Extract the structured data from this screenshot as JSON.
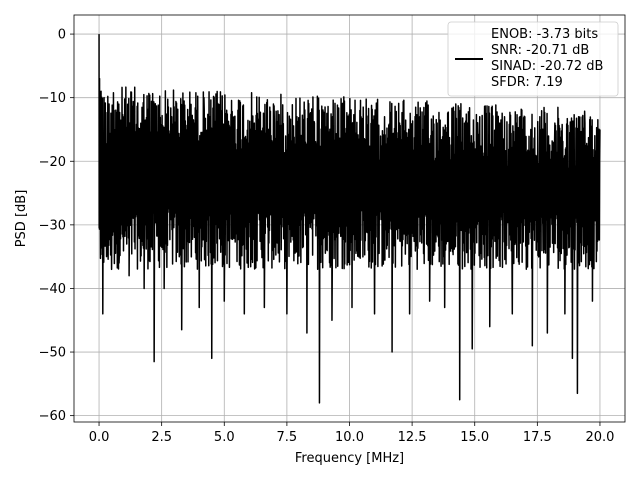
{
  "chart_data": {
    "type": "line",
    "xlabel": "Frequency [MHz]",
    "ylabel": "PSD [dB]",
    "xlim": [
      -1.0,
      21.0
    ],
    "ylim": [
      -61.0,
      3.0
    ],
    "xticks": [
      0.0,
      2.5,
      5.0,
      7.5,
      10.0,
      12.5,
      15.0,
      17.5,
      20.0
    ],
    "xtick_labels": [
      "0.0",
      "2.5",
      "5.0",
      "7.5",
      "10.0",
      "12.5",
      "15.0",
      "17.5",
      "20.0"
    ],
    "yticks": [
      0,
      -10,
      -20,
      -30,
      -40,
      -50,
      -60
    ],
    "ytick_labels": [
      "0",
      "−10",
      "−20",
      "−30",
      "−40",
      "−50",
      "−60"
    ],
    "grid": true,
    "legend_position": "top-right",
    "legend_lines": [
      "ENOB: -3.73 bits",
      "SNR: -20.71 dB",
      "SINAD: -20.72 dB",
      "SFDR: 7.19"
    ],
    "series": [
      {
        "color": "#000000",
        "noise_floor_range_db": [
          -37,
          -8
        ],
        "points": [
          [
            0.0,
            0.0
          ],
          [
            0.02,
            -7
          ],
          [
            0.05,
            -22
          ],
          [
            0.08,
            -9
          ],
          [
            0.1,
            -30
          ],
          [
            0.12,
            -12
          ],
          [
            0.15,
            -44
          ],
          [
            0.2,
            -10
          ],
          [
            0.3,
            -35
          ],
          [
            0.4,
            -11
          ],
          [
            0.5,
            -37
          ],
          [
            0.6,
            -12
          ],
          [
            0.8,
            -36
          ],
          [
            1.0,
            -13
          ],
          [
            1.2,
            -38
          ],
          [
            1.4,
            -12
          ],
          [
            1.8,
            -40
          ],
          [
            2.0,
            -14
          ],
          [
            2.2,
            -51.5
          ],
          [
            2.4,
            -13
          ],
          [
            2.6,
            -40
          ],
          [
            2.9,
            -13
          ],
          [
            3.3,
            -46.5
          ],
          [
            3.6,
            -13
          ],
          [
            4.0,
            -43
          ],
          [
            4.2,
            -12
          ],
          [
            4.5,
            -51
          ],
          [
            4.8,
            -13
          ],
          [
            5.0,
            -42
          ],
          [
            5.4,
            -13
          ],
          [
            5.8,
            -44
          ],
          [
            6.2,
            -14
          ],
          [
            6.6,
            -43
          ],
          [
            7.0,
            -14
          ],
          [
            7.5,
            -44
          ],
          [
            7.9,
            -13
          ],
          [
            8.3,
            -47
          ],
          [
            8.6,
            -14
          ],
          [
            8.8,
            -58
          ],
          [
            9.0,
            -14
          ],
          [
            9.3,
            -45
          ],
          [
            9.7,
            -13
          ],
          [
            10.1,
            -43
          ],
          [
            10.5,
            -14
          ],
          [
            11.0,
            -44
          ],
          [
            11.4,
            -13
          ],
          [
            11.7,
            -50
          ],
          [
            12.0,
            -14
          ],
          [
            12.4,
            -44
          ],
          [
            12.8,
            -13
          ],
          [
            13.2,
            -42
          ],
          [
            13.5,
            -14
          ],
          [
            13.8,
            -43
          ],
          [
            14.1,
            -13
          ],
          [
            14.4,
            -57.5
          ],
          [
            14.7,
            -14
          ],
          [
            14.9,
            -49.5
          ],
          [
            15.2,
            -13
          ],
          [
            15.6,
            -46
          ],
          [
            16.0,
            -14
          ],
          [
            16.5,
            -44
          ],
          [
            17.0,
            -13
          ],
          [
            17.3,
            -49
          ],
          [
            17.6,
            -13
          ],
          [
            17.9,
            -47
          ],
          [
            18.2,
            -14
          ],
          [
            18.6,
            -44
          ],
          [
            18.9,
            -51
          ],
          [
            19.1,
            -56.5
          ],
          [
            19.4,
            -14
          ],
          [
            19.7,
            -42
          ],
          [
            20.0,
            -15
          ]
        ]
      }
    ]
  }
}
